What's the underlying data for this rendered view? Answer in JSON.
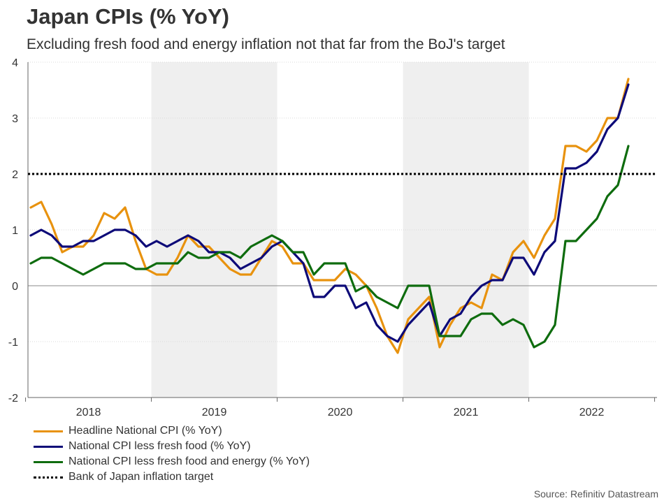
{
  "title": "Japan CPIs (% YoY)",
  "subtitle": "Excluding fresh food and energy inflation not that far from the BoJ's target",
  "source": "Source: Refinitiv Datastream",
  "chart_data": {
    "type": "line",
    "title": "Japan CPIs (% YoY)",
    "xlabel": "",
    "ylabel": "",
    "x_start": "2018-01",
    "x_frequency": "monthly",
    "xlim": [
      "2017-12",
      "2022-12"
    ],
    "ylim": [
      -2,
      4
    ],
    "yticks": [
      -2,
      -1,
      0,
      1,
      2,
      3,
      4
    ],
    "ytick_labels": [
      "-2",
      "-1",
      "0",
      "1",
      "2",
      "3",
      "4"
    ],
    "xtick_labels": [
      "2018",
      "2019",
      "2020",
      "2021",
      "2022"
    ],
    "shaded_years": [
      2019,
      2021
    ],
    "grid": true,
    "legend_position": "bottom-left",
    "series": [
      {
        "name": "Headline National CPI (% YoY)",
        "color": "#E8920E",
        "style": "solid",
        "values": [
          1.4,
          1.5,
          1.1,
          0.6,
          0.7,
          0.7,
          0.9,
          1.3,
          1.2,
          1.4,
          0.8,
          0.3,
          0.2,
          0.2,
          0.5,
          0.9,
          0.7,
          0.7,
          0.5,
          0.3,
          0.2,
          0.2,
          0.5,
          0.8,
          0.7,
          0.4,
          0.4,
          0.1,
          0.1,
          0.1,
          0.3,
          0.2,
          0.0,
          -0.4,
          -0.9,
          -1.2,
          -0.6,
          -0.4,
          -0.2,
          -1.1,
          -0.7,
          -0.4,
          -0.3,
          -0.4,
          0.2,
          0.1,
          0.6,
          0.8,
          0.5,
          0.9,
          1.2,
          2.5,
          2.5,
          2.4,
          2.6,
          3.0,
          3.0,
          3.7
        ]
      },
      {
        "name": "National CPI less fresh food (% YoY)",
        "color": "#0D0A78",
        "style": "solid",
        "values": [
          0.9,
          1.0,
          0.9,
          0.7,
          0.7,
          0.8,
          0.8,
          0.9,
          1.0,
          1.0,
          0.9,
          0.7,
          0.8,
          0.7,
          0.8,
          0.9,
          0.8,
          0.6,
          0.6,
          0.5,
          0.3,
          0.4,
          0.5,
          0.7,
          0.8,
          0.6,
          0.4,
          -0.2,
          -0.2,
          0.0,
          0.0,
          -0.4,
          -0.3,
          -0.7,
          -0.9,
          -1.0,
          -0.7,
          -0.5,
          -0.3,
          -0.9,
          -0.6,
          -0.5,
          -0.2,
          0.0,
          0.1,
          0.1,
          0.5,
          0.5,
          0.2,
          0.6,
          0.8,
          2.1,
          2.1,
          2.2,
          2.4,
          2.8,
          3.0,
          3.6
        ]
      },
      {
        "name": "National CPI less fresh food and energy (% YoY)",
        "color": "#0E6C0E",
        "style": "solid",
        "values": [
          0.4,
          0.5,
          0.5,
          0.4,
          0.3,
          0.2,
          0.3,
          0.4,
          0.4,
          0.4,
          0.3,
          0.3,
          0.4,
          0.4,
          0.4,
          0.6,
          0.5,
          0.5,
          0.6,
          0.6,
          0.5,
          0.7,
          0.8,
          0.9,
          0.8,
          0.6,
          0.6,
          0.2,
          0.4,
          0.4,
          0.4,
          -0.1,
          0.0,
          -0.2,
          -0.3,
          -0.4,
          0.0,
          0.0,
          0.0,
          -0.9,
          -0.9,
          -0.9,
          -0.6,
          -0.5,
          -0.5,
          -0.7,
          -0.6,
          -0.7,
          -1.1,
          -1.0,
          -0.7,
          0.8,
          0.8,
          1.0,
          1.2,
          1.6,
          1.8,
          2.5
        ]
      },
      {
        "name": "Bank of Japan inflation target",
        "color": "#000000",
        "style": "dotted",
        "values": [
          2,
          2
        ]
      }
    ]
  }
}
